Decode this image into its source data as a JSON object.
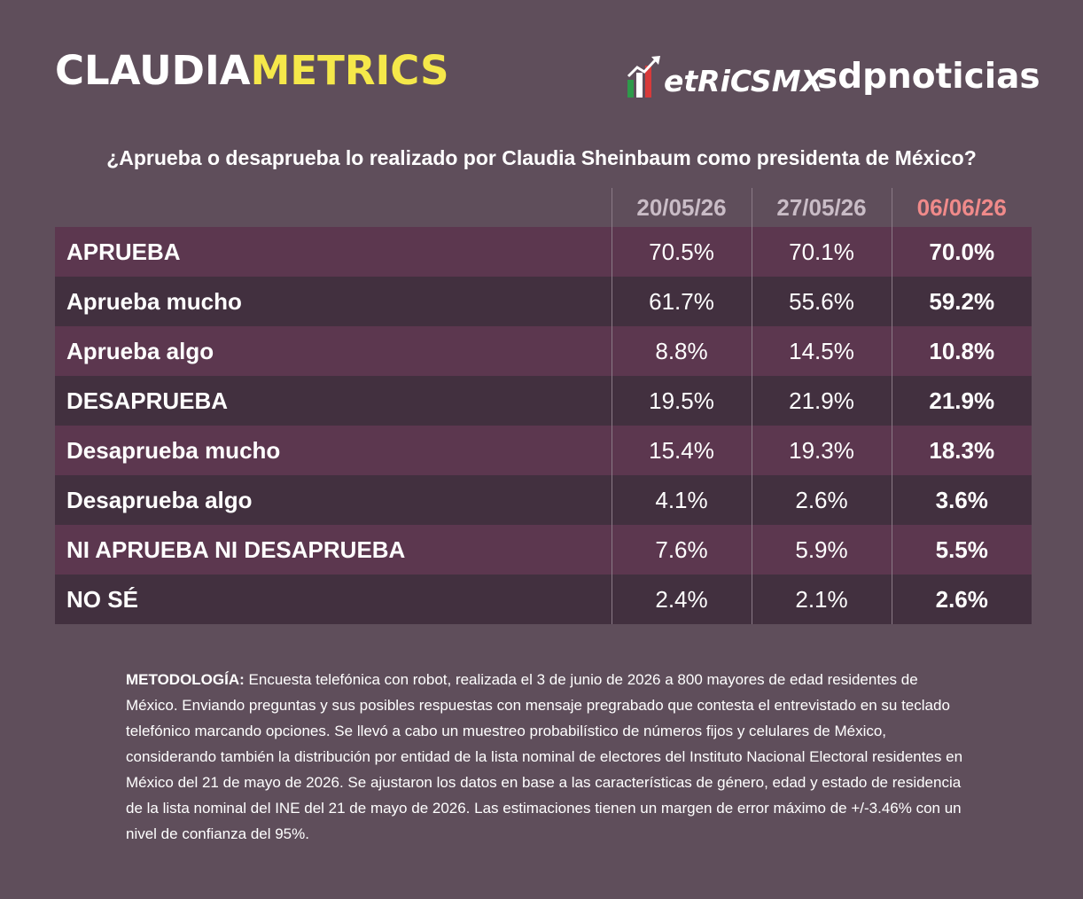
{
  "branding": {
    "claudia_part1": "CLAUDIA",
    "claudia_part2": "METRICS",
    "metrics_logo_text": "etRiCSMX",
    "sdp_logo_text": "sdpnoticias"
  },
  "colors": {
    "background": "#5f4e5b",
    "row_odd": "#5c374f",
    "row_even": "#42303f",
    "brand_yellow": "#f5e84a",
    "header_gray": "#c9bcc6",
    "header_highlight": "#f08a8a"
  },
  "chart_data": {
    "type": "table",
    "title": "¿Aprueba o desaprueba lo realizado por Claudia Sheinbaum como presidenta de México?",
    "columns": [
      "20/05/26",
      "27/05/26",
      "06/06/26"
    ],
    "highlighted_column": "06/06/26",
    "rows": [
      {
        "label": "APRUEBA",
        "values": [
          "70.5%",
          "70.1%",
          "70.0%"
        ]
      },
      {
        "label": "Aprueba mucho",
        "values": [
          "61.7%",
          "55.6%",
          "59.2%"
        ]
      },
      {
        "label": "Aprueba algo",
        "values": [
          "8.8%",
          "14.5%",
          "10.8%"
        ]
      },
      {
        "label": "DESAPRUEBA",
        "values": [
          "19.5%",
          "21.9%",
          "21.9%"
        ]
      },
      {
        "label": "Desaprueba mucho",
        "values": [
          "15.4%",
          "19.3%",
          "18.3%"
        ]
      },
      {
        "label": "Desaprueba algo",
        "values": [
          "4.1%",
          "2.6%",
          "3.6%"
        ]
      },
      {
        "label": "NI APRUEBA NI DESAPRUEBA",
        "values": [
          "7.6%",
          "5.9%",
          "5.5%"
        ]
      },
      {
        "label": "NO SÉ",
        "values": [
          "2.4%",
          "2.1%",
          "2.6%"
        ]
      }
    ]
  },
  "methodology": {
    "label": "METODOLOGÍA:",
    "text": " Encuesta telefónica con robot, realizada el 3 de junio de 2026 a 800 mayores de edad residentes de México. Enviando preguntas y sus posibles respuestas con mensaje pregrabado que contesta el entrevistado en su teclado telefónico marcando opciones. Se llevó a cabo un muestreo probabilístico de números fijos y celulares de México, considerando también la distribución por entidad de la lista nominal de electores del Instituto Nacional Electoral residentes en México del 21 de mayo de 2026. Se ajustaron los datos en base a las características de género, edad y estado de residencia de la lista nominal del INE del 21 de mayo de 2026. Las estimaciones tienen un margen de error máximo de +/-3.46% con un nivel de confianza del 95%."
  }
}
